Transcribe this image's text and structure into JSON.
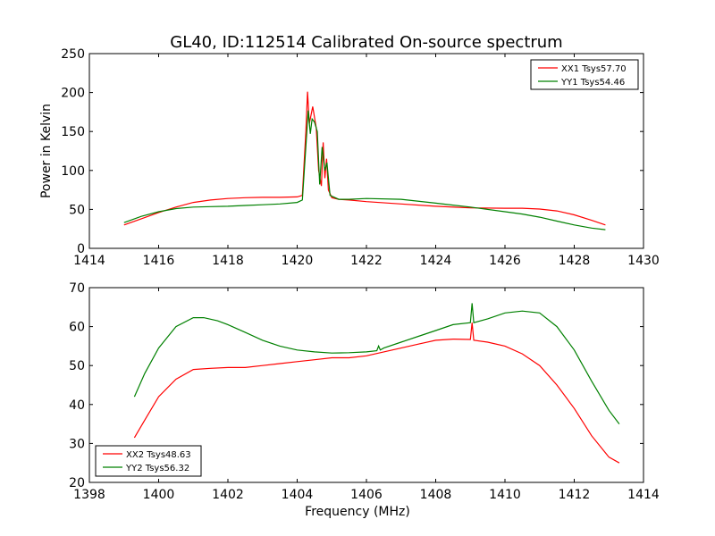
{
  "figure": {
    "title": "GL40, ID:112514 Calibrated On-source spectrum"
  },
  "chart_data": [
    {
      "type": "line",
      "title": "GL40, ID:112514 Calibrated On-source spectrum",
      "xlabel": "",
      "ylabel": "Power in Kelvin",
      "xlim": [
        1414,
        1430
      ],
      "ylim": [
        0,
        250
      ],
      "xticks": [
        1414,
        1416,
        1418,
        1420,
        1422,
        1424,
        1426,
        1428,
        1430
      ],
      "yticks": [
        0,
        50,
        100,
        150,
        200,
        250
      ],
      "grid": false,
      "legend_position": "top-right",
      "series": [
        {
          "name": "XX1 Tsys57.70",
          "color": "#ff0000",
          "x": [
            1415.0,
            1415.5,
            1416.0,
            1416.5,
            1417.0,
            1417.5,
            1418.0,
            1418.5,
            1419.0,
            1419.5,
            1420.0,
            1420.15,
            1420.25,
            1420.3,
            1420.35,
            1420.45,
            1420.55,
            1420.62,
            1420.7,
            1420.75,
            1420.8,
            1420.85,
            1420.9,
            1421.0,
            1421.2,
            1421.5,
            1422.0,
            1423.0,
            1424.0,
            1425.0,
            1426.0,
            1426.5,
            1427.0,
            1427.5,
            1428.0,
            1428.5,
            1428.9
          ],
          "y": [
            30,
            38,
            46,
            53,
            59,
            62,
            64,
            65,
            65.5,
            65.5,
            66,
            68,
            150,
            201,
            160,
            182,
            155,
            100,
            80,
            136,
            90,
            115,
            75,
            65,
            63,
            62,
            60,
            57,
            54,
            52,
            51.5,
            51.5,
            50.5,
            48,
            43,
            36,
            30
          ]
        },
        {
          "name": "YY1 Tsys54.46",
          "color": "#008000",
          "x": [
            1415.0,
            1415.5,
            1416.0,
            1416.5,
            1417.0,
            1417.5,
            1418.0,
            1418.5,
            1419.0,
            1419.5,
            1420.0,
            1420.15,
            1420.25,
            1420.32,
            1420.38,
            1420.43,
            1420.5,
            1420.58,
            1420.65,
            1420.72,
            1420.8,
            1420.86,
            1420.95,
            1421.2,
            1421.5,
            1422.0,
            1423.0,
            1424.0,
            1425.0,
            1426.0,
            1426.5,
            1427.0,
            1427.5,
            1428.0,
            1428.5,
            1428.9
          ],
          "y": [
            33,
            41,
            47,
            51,
            53,
            53.5,
            54,
            55,
            56,
            57,
            59,
            62,
            130,
            177,
            147,
            166,
            162,
            150,
            82,
            130,
            100,
            110,
            68,
            63,
            63,
            64,
            63,
            58,
            53,
            47,
            44,
            40,
            35,
            30,
            26,
            24
          ]
        }
      ]
    },
    {
      "type": "line",
      "title": "",
      "xlabel": "Frequency (MHz)",
      "ylabel": "",
      "xlim": [
        1398,
        1414
      ],
      "ylim": [
        20,
        70
      ],
      "xticks": [
        1398,
        1400,
        1402,
        1404,
        1406,
        1408,
        1410,
        1412,
        1414
      ],
      "yticks": [
        20,
        30,
        40,
        50,
        60,
        70
      ],
      "grid": false,
      "legend_position": "bottom-left",
      "series": [
        {
          "name": "XX2 Tsys48.63",
          "color": "#ff0000",
          "x": [
            1399.3,
            1399.6,
            1400.0,
            1400.5,
            1401.0,
            1401.5,
            1402.0,
            1402.5,
            1403.0,
            1403.5,
            1404.0,
            1404.5,
            1405.0,
            1405.5,
            1406.0,
            1406.5,
            1407.0,
            1407.5,
            1408.0,
            1408.5,
            1409.0,
            1409.05,
            1409.1,
            1409.5,
            1410.0,
            1410.5,
            1411.0,
            1411.5,
            1412.0,
            1412.5,
            1413.0,
            1413.3
          ],
          "y": [
            31.5,
            36,
            42,
            46.5,
            49,
            49.3,
            49.5,
            49.5,
            50,
            50.5,
            51,
            51.5,
            52,
            52,
            52.5,
            53.5,
            54.5,
            55.5,
            56.5,
            56.8,
            56.7,
            61,
            56.5,
            56,
            55,
            53,
            50,
            45,
            39,
            32,
            26.5,
            25
          ]
        },
        {
          "name": "YY2 Tsys56.32",
          "color": "#008000",
          "x": [
            1399.3,
            1399.6,
            1400.0,
            1400.5,
            1401.0,
            1401.3,
            1401.7,
            1402.0,
            1402.5,
            1403.0,
            1403.5,
            1404.0,
            1404.5,
            1405.0,
            1405.5,
            1406.0,
            1406.3,
            1406.35,
            1406.4,
            1406.5,
            1407.0,
            1407.5,
            1408.0,
            1408.5,
            1409.0,
            1409.05,
            1409.1,
            1409.5,
            1410.0,
            1410.5,
            1411.0,
            1411.5,
            1412.0,
            1412.5,
            1413.0,
            1413.3
          ],
          "y": [
            42,
            48,
            54.5,
            60,
            62.3,
            62.3,
            61.5,
            60.5,
            58.5,
            56.5,
            55,
            54,
            53.5,
            53.2,
            53.3,
            53.5,
            53.8,
            55,
            54,
            54.5,
            56,
            57.5,
            59,
            60.5,
            61,
            66,
            61,
            62,
            63.5,
            64,
            63.5,
            60,
            54,
            46,
            38.5,
            35
          ]
        }
      ]
    }
  ]
}
